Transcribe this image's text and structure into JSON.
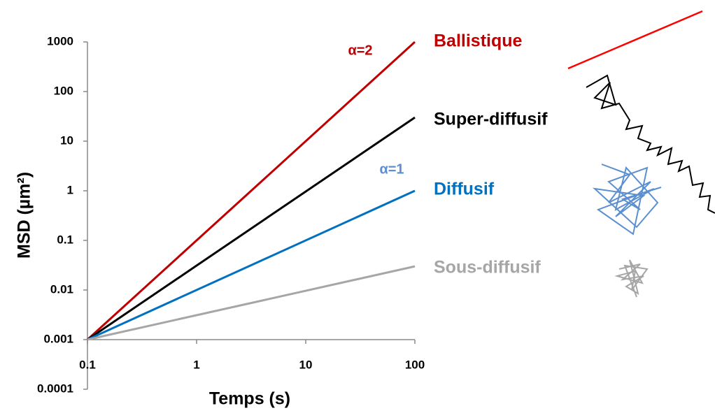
{
  "chart_data": {
    "type": "line",
    "x_label": "Temps (s)",
    "y_label": "MSD (µm²)",
    "log_x": true,
    "log_y": true,
    "xlim": [
      0.1,
      100
    ],
    "xticks": [
      0.1,
      1,
      10,
      100
    ],
    "ylim": [
      0.0001,
      1000
    ],
    "yticks": [
      0.0001,
      0.001,
      0.01,
      0.1,
      1,
      10,
      100,
      1000
    ],
    "x": [
      0.1,
      100
    ],
    "series": [
      {
        "name": "Ballistique",
        "color": "#c00000",
        "values": [
          0.001,
          1000
        ]
      },
      {
        "name": "Super-diffusif",
        "color": "#000000",
        "values": [
          0.001,
          30
        ]
      },
      {
        "name": "Diffusif",
        "color": "#0070c0",
        "values": [
          0.001,
          1
        ]
      },
      {
        "name": "Sous-diffusif",
        "color": "#a6a6a6",
        "values": [
          0.001,
          0.03
        ]
      }
    ],
    "annotations": [
      {
        "text": "α=2",
        "color": "#c00000"
      },
      {
        "text": "α=1",
        "color": "#5b8fd0"
      }
    ]
  }
}
